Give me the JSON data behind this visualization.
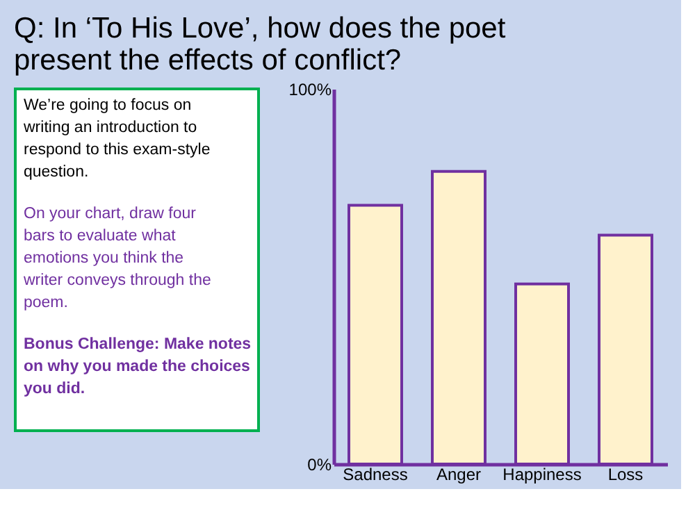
{
  "chart_data": {
    "type": "bar",
    "title": "Q: In ‘To His Love’, how does the poet present the effects of conflict?",
    "annotations": [
      "We’re going to focus on writing an introduction to respond to this exam-style question.",
      "On your chart, draw four bars to evaluate what emotions you think the writer conveys through the poem.",
      "Bonus Challenge: Make notes on why you made the choices you did."
    ],
    "categories": [
      "Sadness",
      "Anger",
      "Happiness",
      "Loss"
    ],
    "values": [
      69,
      78,
      48,
      61
    ],
    "color": "#fff2cc",
    "ylim": [
      0,
      100
    ],
    "yticks": [
      {
        "value": 0,
        "label": "0%"
      },
      {
        "value": 100,
        "label": "100%"
      }
    ],
    "grid": false
  }
}
